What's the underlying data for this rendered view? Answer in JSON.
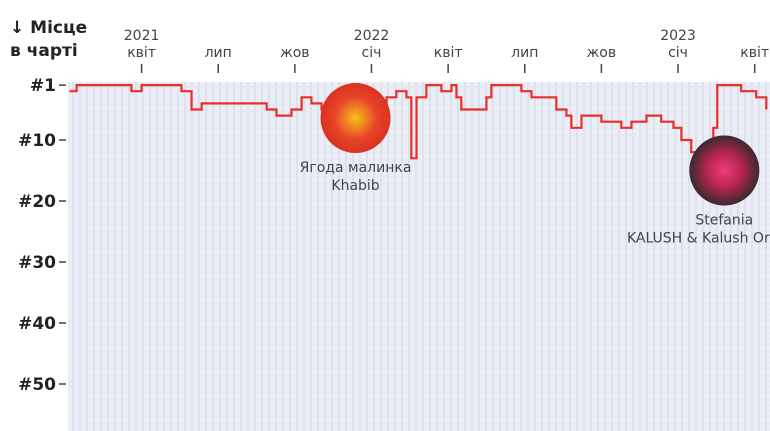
{
  "chart_data": {
    "type": "line",
    "y_label": [
      "↓ Місце",
      "в чарті"
    ],
    "x": [
      2021.015,
      2021.038,
      2021.217,
      2021.25,
      2021.283,
      2021.38,
      2021.413,
      2021.446,
      2021.658,
      2021.69,
      2021.739,
      2021.772,
      2021.804,
      2021.837,
      2021.948,
      2022.049,
      2022.081,
      2022.114,
      2022.13,
      2022.147,
      2022.179,
      2022.228,
      2022.261,
      2022.277,
      2022.293,
      2022.342,
      2022.375,
      2022.391,
      2022.489,
      2022.522,
      2022.603,
      2022.636,
      2022.652,
      2022.685,
      2022.75,
      2022.815,
      2022.848,
      2022.897,
      2022.945,
      2022.985,
      2023.011,
      2023.043,
      2023.076,
      2023.115,
      2023.128,
      2023.206,
      2023.255,
      2023.288
    ],
    "values": [
      2,
      1,
      2,
      1,
      1,
      2,
      5,
      4,
      5,
      6,
      5,
      3,
      4,
      5,
      5,
      3,
      2,
      3,
      13,
      3,
      1,
      2,
      1,
      3,
      5,
      5,
      3,
      1,
      2,
      3,
      5,
      6,
      8,
      6,
      7,
      8,
      7,
      6,
      7,
      8,
      10,
      12,
      13,
      8,
      1,
      2,
      3,
      5
    ],
    "color": "#e8302a",
    "xlim": [
      2021.01,
      2023.3
    ],
    "xticks": [
      {
        "value": 2021.25,
        "label": "квіт",
        "year": "2021"
      },
      {
        "value": 2021.5,
        "label": "лип"
      },
      {
        "value": 2021.75,
        "label": "жов"
      },
      {
        "value": 2022.0,
        "label": "січ",
        "year": "2022"
      },
      {
        "value": 2022.25,
        "label": "квіт"
      },
      {
        "value": 2022.5,
        "label": "лип"
      },
      {
        "value": 2022.75,
        "label": "жов"
      },
      {
        "value": 2023.0,
        "label": "січ",
        "year": "2023"
      },
      {
        "value": 2023.25,
        "label": "квіт"
      }
    ],
    "ylim": [
      0,
      57.5
    ],
    "y_inverted": true,
    "yticks": [
      {
        "value": 1,
        "label": "#1"
      },
      {
        "value": 10,
        "label": "#10"
      },
      {
        "value": 20,
        "label": "#20"
      },
      {
        "value": 30,
        "label": "#30"
      },
      {
        "value": 40,
        "label": "#40"
      },
      {
        "value": 50,
        "label": "#50"
      }
    ],
    "annotations": [
      {
        "x": 2021.948,
        "rank": 6.4,
        "title": "Ягода малинка",
        "artist": "Khabib"
      },
      {
        "x": 2023.151,
        "rank": 15,
        "title": "Stefania",
        "artist": "KALUSH & Kalush Orchestra"
      }
    ]
  }
}
